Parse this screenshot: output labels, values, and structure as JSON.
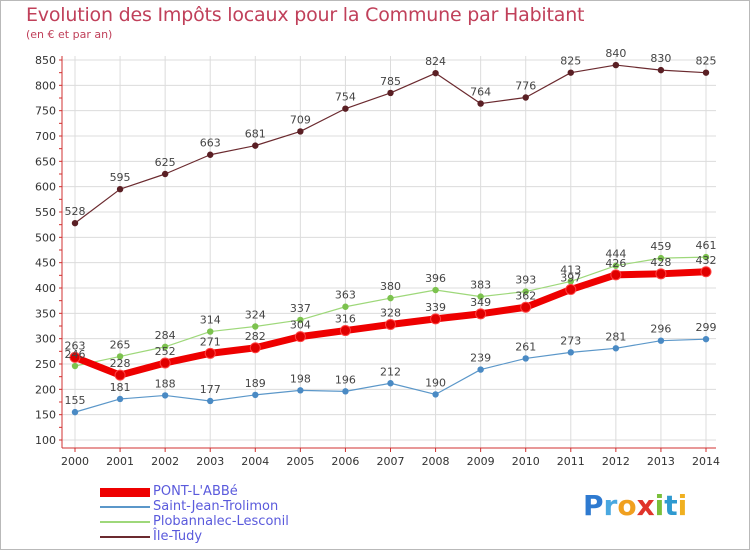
{
  "title": "Evolution des Impôts locaux pour la Commune par Habitant",
  "subtitle": "(en € et par an)",
  "logo": {
    "text": "Proxiti",
    "letters": [
      {
        "ch": "P",
        "color": "#2e7ad0"
      },
      {
        "ch": "r",
        "color": "#4aa8e0"
      },
      {
        "ch": "o",
        "color": "#f0a020"
      },
      {
        "ch": "x",
        "color": "#e0332a"
      },
      {
        "ch": "i",
        "color": "#7abf3a"
      },
      {
        "ch": "t",
        "color": "#2e9ad0"
      },
      {
        "ch": "i",
        "color": "#f0b020"
      }
    ]
  },
  "chart_data": {
    "type": "line",
    "x": [
      "2000",
      "2001",
      "2002",
      "2003",
      "2004",
      "2005",
      "2006",
      "2007",
      "2008",
      "2009",
      "2010",
      "2011",
      "2012",
      "2013",
      "2014"
    ],
    "yticks": [
      100,
      150,
      200,
      250,
      300,
      350,
      400,
      450,
      500,
      550,
      600,
      650,
      700,
      750,
      800,
      850
    ],
    "ylim": [
      100,
      850
    ],
    "grid": true,
    "legend_position": "bottom-left",
    "series": [
      {
        "name": "Île-Tudy",
        "color": "#6b2a2f",
        "point_color": "#5a1f24",
        "width": 1.2,
        "values": [
          528,
          595,
          625,
          663,
          681,
          709,
          754,
          785,
          824,
          764,
          776,
          825,
          840,
          830,
          825
        ]
      },
      {
        "name": "Plobannalec-Lesconil",
        "color": "#9ed87a",
        "point_color": "#7cc24e",
        "width": 1.2,
        "values": [
          246,
          265,
          284,
          314,
          324,
          337,
          363,
          380,
          396,
          383,
          393,
          413,
          444,
          459,
          461
        ]
      },
      {
        "name": "Saint-Jean-Trolimon",
        "color": "#5b97c9",
        "point_color": "#4a8ac4",
        "width": 1.2,
        "values": [
          155,
          181,
          188,
          177,
          189,
          198,
          196,
          212,
          190,
          239,
          261,
          273,
          281,
          296,
          299
        ]
      },
      {
        "name": "PONT-L'ABBé",
        "color": "#ee0000",
        "point_color": "#e00000",
        "width": 7,
        "values": [
          263,
          228,
          252,
          271,
          282,
          304,
          316,
          328,
          339,
          349,
          362,
          397,
          426,
          428,
          432
        ]
      }
    ],
    "legend_order": [
      "PONT-L'ABBé",
      "Saint-Jean-Trolimon",
      "Plobannalec-Lesconil",
      "Île-Tudy"
    ]
  }
}
